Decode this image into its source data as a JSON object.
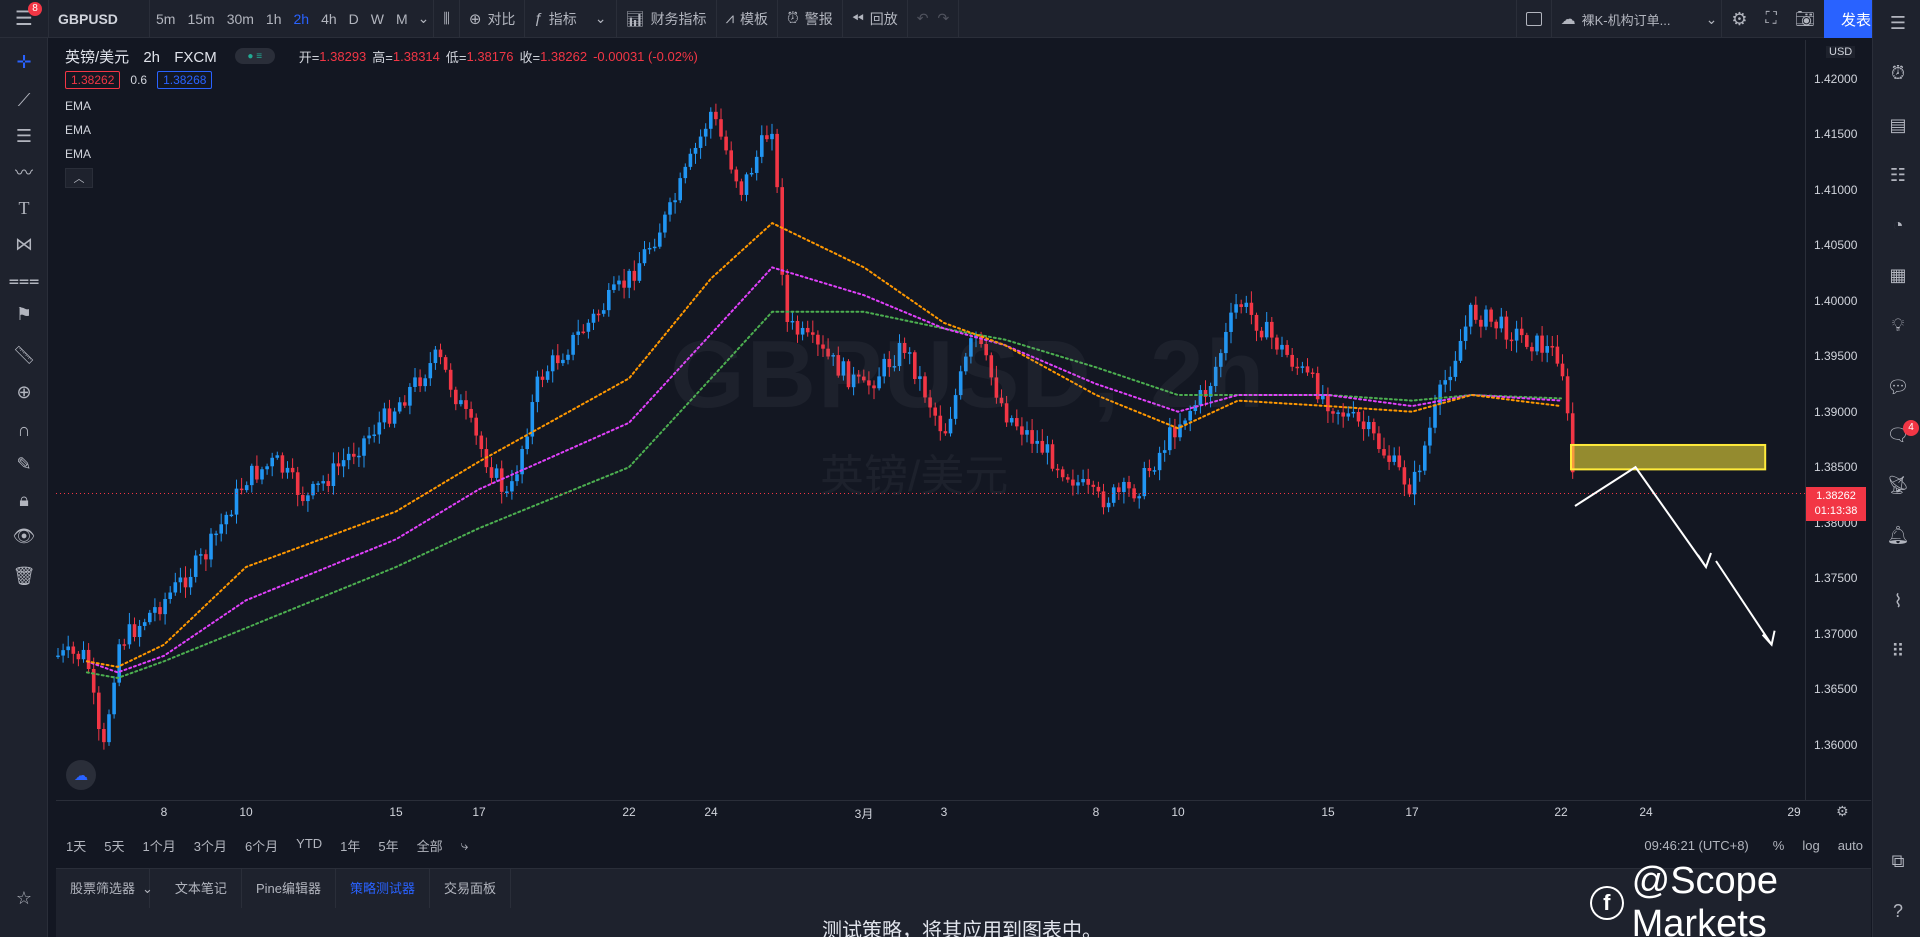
{
  "topbar": {
    "menu_badge": "8",
    "symbol": "GBPUSD",
    "intervals": [
      "5m",
      "15m",
      "30m",
      "1h",
      "2h",
      "4h",
      "D",
      "W",
      "M"
    ],
    "active_interval": "2h",
    "compare_label": "对比",
    "indicators_label": "指标",
    "financials_label": "财务指标",
    "templates_label": "模板",
    "alert_label": "警报",
    "replay_label": "回放",
    "layout_name": "裸K-机构订单...",
    "publish_label": "发表"
  },
  "legend": {
    "title": "英镑/美元",
    "interval": "2h",
    "exchange": "FXCM",
    "open_label": "开=",
    "open": "1.38293",
    "high_label": "高=",
    "high": "1.38314",
    "low_label": "低=",
    "low": "1.38176",
    "close_label": "收=",
    "close": "1.38262",
    "change": "-0.00031 (-0.02%)",
    "bid": "1.38262",
    "spread": "0.6",
    "ask": "1.38268",
    "indicators": [
      "EMA",
      "EMA",
      "EMA"
    ]
  },
  "watermark": {
    "symbol": "GBPUSD, 2h",
    "description": "英镑/美元"
  },
  "price_scale": {
    "currency": "USD",
    "labels": [
      "1.42000",
      "1.41500",
      "1.41000",
      "1.40500",
      "1.40000",
      "1.39500",
      "1.39000",
      "1.38500",
      "1.38000",
      "1.37500",
      "1.37000",
      "1.36500",
      "1.36000"
    ],
    "last_price": "1.38262",
    "countdown": "01:13:38"
  },
  "time_axis": {
    "labels": [
      "8",
      "10",
      "15",
      "17",
      "22",
      "24",
      "3月",
      "3",
      "8",
      "10",
      "15",
      "17",
      "22",
      "24",
      "29"
    ]
  },
  "range_bar": {
    "ranges": [
      "1天",
      "5天",
      "1个月",
      "3个月",
      "6个月",
      "YTD",
      "1年",
      "5年",
      "全部"
    ],
    "time": "09:46:21 (UTC+8)",
    "percent": "%",
    "log": "log",
    "auto": "auto"
  },
  "bottom_tabs": {
    "tabs": [
      "股票筛选器",
      "文本笔记",
      "Pine编辑器",
      "策略测试器",
      "交易面板"
    ],
    "active": "策略测试器",
    "message": "测试策略，将其应用到图表中。"
  },
  "brand": {
    "text": "@Scope Markets"
  },
  "right_badge": "4",
  "colors": {
    "up": "#2196f3",
    "down": "#f23645",
    "ema_fast": "#ff9800",
    "ema_mid": "#e040fb",
    "ema_slow": "#4caf50",
    "zone": "#ffeb3b",
    "accent": "#2962ff"
  },
  "chart_data": {
    "type": "candlestick",
    "symbol": "GBPUSD",
    "interval": "2h",
    "ylim": [
      1.355,
      1.4235
    ],
    "path_points": [
      {
        "date": "02-03",
        "price": 1.368
      },
      {
        "date": "02-04",
        "price": 1.3585
      },
      {
        "date": "02-05",
        "price": 1.369
      },
      {
        "date": "02-08",
        "price": 1.373
      },
      {
        "date": "02-09",
        "price": 1.377
      },
      {
        "date": "02-10",
        "price": 1.384
      },
      {
        "date": "02-11",
        "price": 1.3855
      },
      {
        "date": "02-12",
        "price": 1.382
      },
      {
        "date": "02-15",
        "price": 1.3905
      },
      {
        "date": "02-16",
        "price": 1.395
      },
      {
        "date": "02-17",
        "price": 1.387
      },
      {
        "date": "02-18",
        "price": 1.382
      },
      {
        "date": "02-19",
        "price": 1.393
      },
      {
        "date": "02-22",
        "price": 1.402
      },
      {
        "date": "02-23",
        "price": 1.408
      },
      {
        "date": "02-24",
        "price": 1.417
      },
      {
        "date": "02-25",
        "price": 1.41
      },
      {
        "date": "02-26",
        "price": 1.416
      },
      {
        "date": "02-26",
        "price": 1.398
      },
      {
        "date": "03-01",
        "price": 1.392
      },
      {
        "date": "03-02",
        "price": 1.396
      },
      {
        "date": "03-03",
        "price": 1.388
      },
      {
        "date": "03-04",
        "price": 1.397
      },
      {
        "date": "03-05",
        "price": 1.39
      },
      {
        "date": "03-08",
        "price": 1.382
      },
      {
        "date": "03-09",
        "price": 1.383
      },
      {
        "date": "03-10",
        "price": 1.389
      },
      {
        "date": "03-11",
        "price": 1.392
      },
      {
        "date": "03-12",
        "price": 1.4
      },
      {
        "date": "03-15",
        "price": 1.391
      },
      {
        "date": "03-16",
        "price": 1.388
      },
      {
        "date": "03-17",
        "price": 1.383
      },
      {
        "date": "03-18",
        "price": 1.392
      },
      {
        "date": "03-19",
        "price": 1.399
      },
      {
        "date": "03-22",
        "price": 1.395
      },
      {
        "date": "03-22",
        "price": 1.3826
      }
    ],
    "ema_fast": [
      {
        "date": "02-03",
        "price": 1.3675
      },
      {
        "date": "02-05",
        "price": 1.367
      },
      {
        "date": "02-08",
        "price": 1.369
      },
      {
        "date": "02-10",
        "price": 1.376
      },
      {
        "date": "02-15",
        "price": 1.381
      },
      {
        "date": "02-17",
        "price": 1.3855
      },
      {
        "date": "02-22",
        "price": 1.393
      },
      {
        "date": "02-24",
        "price": 1.402
      },
      {
        "date": "02-26",
        "price": 1.407
      },
      {
        "date": "03-01",
        "price": 1.403
      },
      {
        "date": "03-03",
        "price": 1.398
      },
      {
        "date": "03-05",
        "price": 1.396
      },
      {
        "date": "03-08",
        "price": 1.3915
      },
      {
        "date": "03-10",
        "price": 1.3885
      },
      {
        "date": "03-12",
        "price": 1.391
      },
      {
        "date": "03-15",
        "price": 1.3905
      },
      {
        "date": "03-17",
        "price": 1.39
      },
      {
        "date": "03-19",
        "price": 1.3915
      },
      {
        "date": "03-22",
        "price": 1.3905
      }
    ],
    "ema_mid": [
      {
        "date": "02-03",
        "price": 1.3675
      },
      {
        "date": "02-05",
        "price": 1.3665
      },
      {
        "date": "02-08",
        "price": 1.368
      },
      {
        "date": "02-10",
        "price": 1.373
      },
      {
        "date": "02-15",
        "price": 1.3785
      },
      {
        "date": "02-17",
        "price": 1.383
      },
      {
        "date": "02-22",
        "price": 1.389
      },
      {
        "date": "02-24",
        "price": 1.397
      },
      {
        "date": "02-26",
        "price": 1.403
      },
      {
        "date": "03-01",
        "price": 1.4005
      },
      {
        "date": "03-03",
        "price": 1.3975
      },
      {
        "date": "03-05",
        "price": 1.396
      },
      {
        "date": "03-08",
        "price": 1.3925
      },
      {
        "date": "03-10",
        "price": 1.39
      },
      {
        "date": "03-12",
        "price": 1.3915
      },
      {
        "date": "03-15",
        "price": 1.3915
      },
      {
        "date": "03-17",
        "price": 1.3905
      },
      {
        "date": "03-19",
        "price": 1.3915
      },
      {
        "date": "03-22",
        "price": 1.391
      }
    ],
    "ema_slow": [
      {
        "date": "02-03",
        "price": 1.3665
      },
      {
        "date": "02-05",
        "price": 1.366
      },
      {
        "date": "02-08",
        "price": 1.3675
      },
      {
        "date": "02-10",
        "price": 1.3705
      },
      {
        "date": "02-15",
        "price": 1.376
      },
      {
        "date": "02-17",
        "price": 1.3795
      },
      {
        "date": "02-22",
        "price": 1.385
      },
      {
        "date": "02-24",
        "price": 1.393
      },
      {
        "date": "02-26",
        "price": 1.399
      },
      {
        "date": "03-01",
        "price": 1.399
      },
      {
        "date": "03-03",
        "price": 1.3975
      },
      {
        "date": "03-05",
        "price": 1.3965
      },
      {
        "date": "03-08",
        "price": 1.394
      },
      {
        "date": "03-10",
        "price": 1.3915
      },
      {
        "date": "03-12",
        "price": 1.3915
      },
      {
        "date": "03-15",
        "price": 1.3915
      },
      {
        "date": "03-17",
        "price": 1.391
      },
      {
        "date": "03-19",
        "price": 1.3915
      },
      {
        "date": "03-22",
        "price": 1.3912
      }
    ],
    "last_price": 1.38262,
    "zone": {
      "date_from": "03-22",
      "date_to": "03-26",
      "price_low": 1.3848,
      "price_high": 1.387
    },
    "projection": [
      {
        "date": "03-22",
        "price": 1.3815
      },
      {
        "date": "03-23",
        "price": 1.385
      },
      {
        "date": "03-24",
        "price": 1.376
      },
      {
        "date": "03-24",
        "price": 1.376
      },
      {
        "date": "03-25",
        "price": 1.369
      }
    ]
  }
}
